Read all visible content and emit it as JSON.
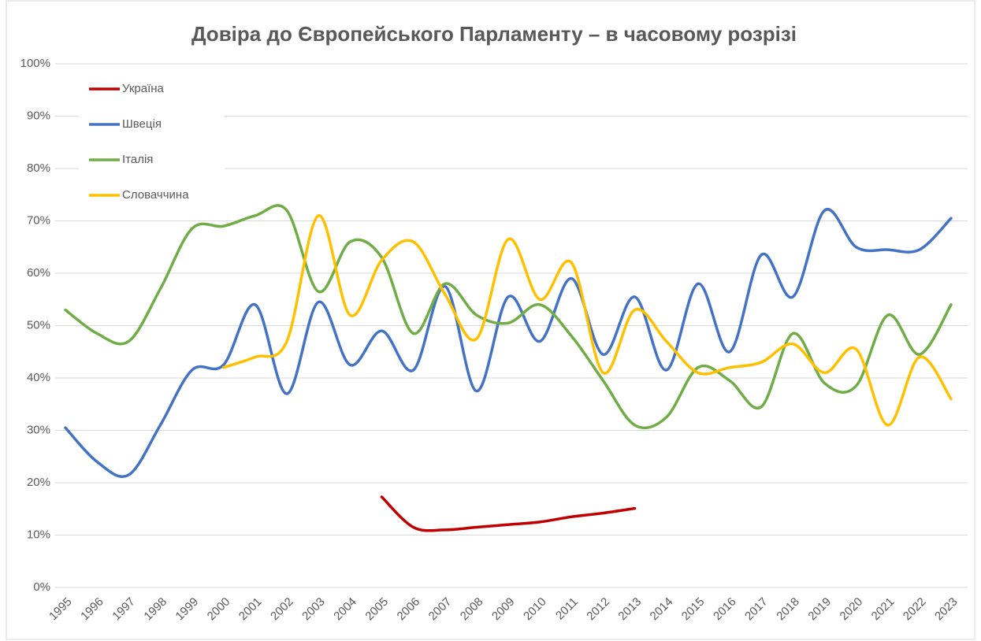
{
  "chart_data": {
    "type": "line",
    "title": "Довіра до Європейського Парламенту – в часовому розрізі",
    "categories": [
      "1995",
      "1996",
      "1997",
      "1998",
      "1999",
      "2000",
      "2001",
      "2002",
      "2003",
      "2004",
      "2005",
      "2006",
      "2007",
      "2008",
      "2009",
      "2010",
      "2011",
      "2012",
      "2013",
      "2014",
      "2015",
      "2016",
      "2017",
      "2018",
      "2019",
      "2020",
      "2021",
      "2022",
      "2023"
    ],
    "series": [
      {
        "name": "Україна",
        "color": "#c00000",
        "values": [
          null,
          null,
          null,
          null,
          null,
          null,
          null,
          null,
          null,
          null,
          17.3,
          11.5,
          11,
          11.5,
          12,
          12.5,
          13.5,
          14.2,
          15.1,
          null,
          null,
          null,
          null,
          null,
          null,
          null,
          null,
          null,
          null
        ]
      },
      {
        "name": "Швеція",
        "color": "#4472c4",
        "values": [
          30.5,
          24,
          21.5,
          31,
          41.5,
          42.5,
          54,
          37,
          54.5,
          42.5,
          49,
          41.5,
          57.5,
          37.5,
          55.5,
          47,
          59,
          44.5,
          55.5,
          41.5,
          58,
          45,
          63.5,
          55.5,
          72,
          65,
          64.5,
          64.5,
          70.5
        ]
      },
      {
        "name": "Італія",
        "color": "#70ad47",
        "values": [
          53,
          48.5,
          47,
          57,
          68.5,
          69,
          71,
          72,
          56.5,
          66,
          63,
          48.5,
          58,
          52,
          50.5,
          54,
          48,
          39.5,
          31,
          32.5,
          42,
          39.5,
          34.5,
          48.5,
          39,
          38.5,
          52,
          44.5,
          54
        ]
      },
      {
        "name": "Словаччина",
        "color": "#ffc000",
        "values": [
          null,
          null,
          null,
          null,
          null,
          42,
          44,
          47,
          71,
          52,
          62.5,
          66,
          56,
          47.5,
          66.5,
          55,
          62,
          41,
          53,
          47,
          41,
          42,
          43,
          46.5,
          41,
          45.5,
          31,
          44,
          36
        ]
      }
    ],
    "ylim": [
      0,
      100
    ],
    "yticks": [
      {
        "value": 0,
        "label": "0%"
      },
      {
        "value": 10,
        "label": "10%"
      },
      {
        "value": 20,
        "label": "20%"
      },
      {
        "value": 30,
        "label": "30%"
      },
      {
        "value": 40,
        "label": "40%"
      },
      {
        "value": 50,
        "label": "50%"
      },
      {
        "value": 60,
        "label": "60%"
      },
      {
        "value": 70,
        "label": "70%"
      },
      {
        "value": 80,
        "label": "80%"
      },
      {
        "value": 90,
        "label": "90%"
      },
      {
        "value": 100,
        "label": "100%"
      }
    ],
    "grid": true,
    "legend": "top-left"
  }
}
